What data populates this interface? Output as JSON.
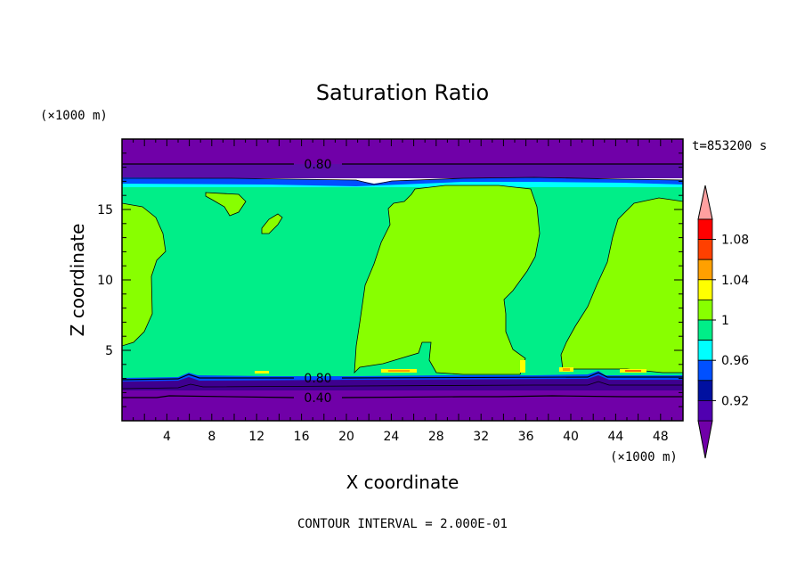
{
  "chart_data": {
    "type": "contour",
    "title": "Saturation Ratio",
    "xlabel": "X coordinate",
    "ylabel": "Z coordinate",
    "x_unit": "(×1000 m)",
    "y_unit": "(×1000 m)",
    "time_label": "t=853200 s",
    "footer": "CONTOUR INTERVAL = 2.000E-01",
    "xlim": [
      0,
      50
    ],
    "ylim": [
      0,
      20
    ],
    "x_ticks": [
      "4",
      "8",
      "12",
      "16",
      "20",
      "24",
      "28",
      "32",
      "36",
      "40",
      "44",
      "48"
    ],
    "y_ticks": [
      "5",
      "10",
      "15"
    ],
    "contour_labels": [
      "0.80",
      "0.80",
      "0.40"
    ],
    "colorbar": {
      "labels": [
        "1.08",
        "1.04",
        "1",
        "0.96",
        "0.92"
      ],
      "levels": [
        0.9,
        0.92,
        0.94,
        0.96,
        0.98,
        1.0,
        1.02,
        1.04,
        1.06,
        1.08,
        1.1
      ],
      "colors": [
        "#7000a8",
        "#5000b0",
        "#0010a0",
        "#0050ff",
        "#00ffff",
        "#00ee88",
        "#88ff00",
        "#ffff00",
        "#ffa000",
        "#ff4000",
        "#ff0000",
        "#ffa0a0"
      ]
    },
    "bands_z": {
      "top_purple": [
        18.3,
        20.0
      ],
      "upper_dark": [
        17.4,
        18.3
      ],
      "upper_blue": [
        16.8,
        17.4
      ],
      "green_layer": [
        3.3,
        16.8
      ],
      "lower_dark": [
        2.9,
        3.3
      ],
      "lower_purple": [
        0,
        2.9
      ]
    },
    "colors": {
      "green": "#00ee88",
      "lime": "#88ff00",
      "purple": "#7000a8",
      "dark_purple": "#3e008f",
      "blue": "#0050ff",
      "cyan": "#00ffff",
      "yellow": "#ffff00",
      "orange": "#ffa000"
    }
  }
}
